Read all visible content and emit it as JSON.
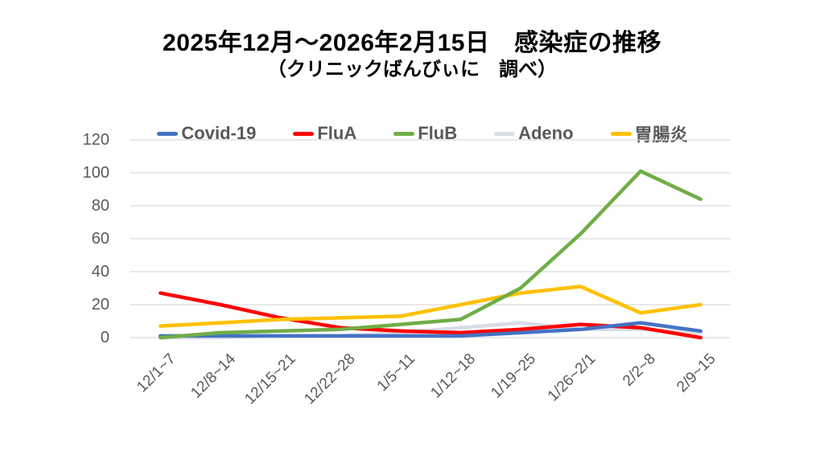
{
  "page": {
    "title": "2025年12月～2026年2月15日　感染症の推移",
    "subtitle": "（クリニックばんびぃに　調べ）"
  },
  "chart_data": {
    "type": "line",
    "title": "2025年12月～2026年2月15日　感染症の推移",
    "subtitle": "（クリニックばんびぃに　調べ）",
    "categories": [
      "12/1~7",
      "12/8~14",
      "12/15~21",
      "12/22~28",
      "1/5~11",
      "1/12~18",
      "1/19~25",
      "1/26~2/1",
      "2/2~8",
      "2/9~15"
    ],
    "series": [
      {
        "name": "Covid-19",
        "color": "#4472C4",
        "values": [
          1,
          1,
          1,
          1,
          1,
          1,
          3,
          5,
          9,
          4
        ]
      },
      {
        "name": "FluA",
        "color": "#FF0000",
        "values": [
          27,
          20,
          12,
          6,
          4,
          3,
          5,
          8,
          6,
          0
        ]
      },
      {
        "name": "FluB",
        "color": "#70AD47",
        "values": [
          0,
          3,
          4,
          5,
          8,
          11,
          30,
          63,
          101,
          84
        ]
      },
      {
        "name": "Adeno",
        "color": "#D8DDE6",
        "values": [
          0,
          0,
          1,
          1,
          3,
          6,
          9,
          5,
          5,
          3
        ]
      },
      {
        "name": "胃腸炎",
        "color": "#FFC000",
        "values": [
          7,
          9,
          11,
          12,
          13,
          20,
          27,
          31,
          15,
          20
        ]
      }
    ],
    "xlabel": "",
    "ylabel": "",
    "ylim": [
      0,
      120
    ],
    "yticks": [
      0,
      20,
      40,
      60,
      80,
      100,
      120
    ],
    "grid": true,
    "legend_position": "top"
  },
  "colors": {
    "background": "#FFFFFF",
    "gridline": "#D9D9D9",
    "axis_text": "#595959",
    "legend_text": "#595959",
    "title_text": "#000000"
  }
}
